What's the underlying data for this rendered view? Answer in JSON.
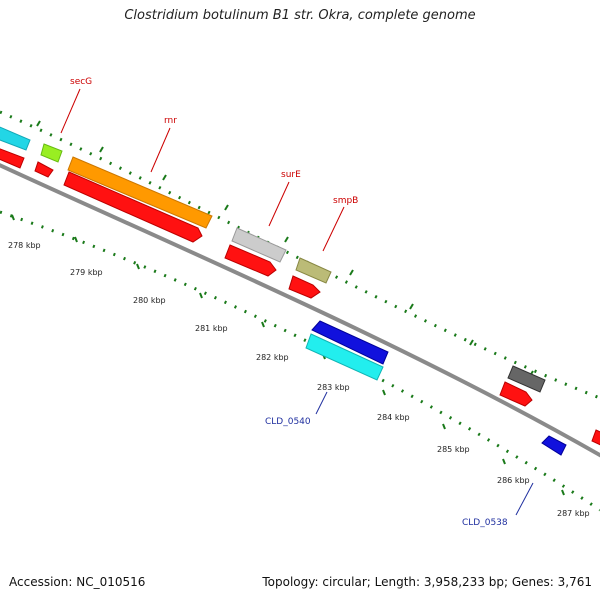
{
  "title": "Clostridium botulinum B1 str. Okra, complete genome",
  "accession": "Accession: NC_010516",
  "summary": "Topology: circular; Length: 3,958,233 bp; Genes: 3,761",
  "ticks": [
    "278 kbp",
    "279 kbp",
    "280 kbp",
    "281 kbp",
    "282 kbp",
    "283 kbp",
    "284 kbp",
    "285 kbp",
    "286 kbp",
    "287 kbp"
  ],
  "gene_labels": [
    "secG",
    "rnr",
    "surE",
    "smpB",
    "CLD_0540",
    "CLD_0538"
  ],
  "colors": {
    "backbone": "#8a8a8a",
    "tick": "#1a7a1a",
    "label_red": "#cc0000",
    "label_blue": "#1f2f9f"
  }
}
